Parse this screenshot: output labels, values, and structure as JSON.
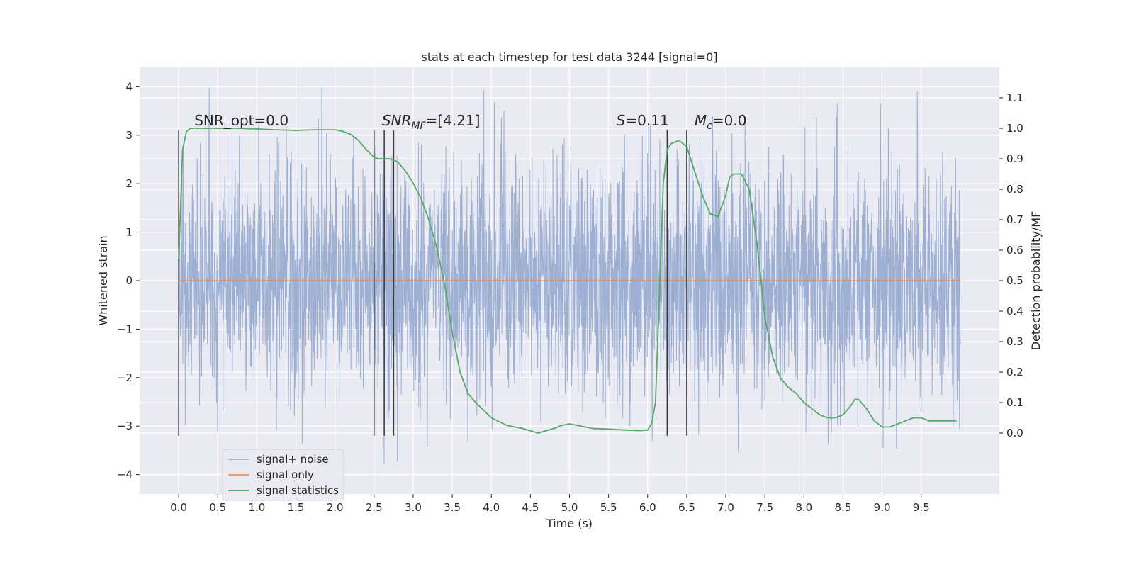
{
  "chart_data": {
    "type": "line",
    "title": "stats at each timestep for test data 3244 [signal=0]",
    "xlabel": "Time (s)",
    "ylabel": "Whitened strain",
    "y2label": "Detection probability/MF",
    "xlim": [
      -0.5,
      10.5
    ],
    "ylim": [
      -4.4,
      4.4
    ],
    "y2lim": [
      -0.2,
      1.2
    ],
    "x_ticks": [
      0.0,
      0.5,
      1.0,
      1.5,
      2.0,
      2.5,
      3.0,
      3.5,
      4.0,
      4.5,
      5.0,
      5.5,
      6.0,
      6.5,
      7.0,
      7.5,
      8.0,
      8.5,
      9.0,
      9.5
    ],
    "x_tick_labels": [
      "0.0",
      "0.5",
      "1.0",
      "1.5",
      "2.0",
      "2.5",
      "3.0",
      "3.5",
      "4.0",
      "4.5",
      "5.0",
      "5.5",
      "6.0",
      "6.5",
      "7.0",
      "7.5",
      "8.0",
      "8.5",
      "9.0",
      "9.5"
    ],
    "y_ticks": [
      4,
      3,
      2,
      1,
      0,
      -1,
      -2,
      -3,
      -4
    ],
    "y_tick_labels": [
      "4",
      "3",
      "2",
      "1",
      "0",
      "−1",
      "−2",
      "−3",
      "−4"
    ],
    "y2_ticks": [
      1.1,
      1.0,
      0.9,
      0.8,
      0.7,
      0.6,
      0.5,
      0.4,
      0.3,
      0.2,
      0.1,
      0.0
    ],
    "y2_tick_labels": [
      "1.1",
      "1.0",
      "0.9",
      "0.8",
      "0.7",
      "0.6",
      "0.5",
      "0.4",
      "0.3",
      "0.2",
      "0.1",
      "0.0"
    ],
    "grid": true,
    "legend_position": "lower-left",
    "colors": {
      "background": "#eaeaf2",
      "grid": "#ffffff",
      "noise": "#8fa4cc",
      "signal_only": "#dd8452",
      "statistics": "#55a868",
      "vlines": "#3a3a3a"
    },
    "vlines": [
      0.0,
      2.5,
      2.63,
      2.75,
      6.25,
      6.5
    ],
    "annotations": [
      {
        "prefix": "SNR_opt=0.0",
        "italic": "",
        "sub": "",
        "suffix": "",
        "x": 0.2
      },
      {
        "prefix": "",
        "italic": "SNR",
        "sub": "MF",
        "suffix": "=[4.21]",
        "x": 2.6
      },
      {
        "prefix": "",
        "italic": "S",
        "sub": "",
        "suffix": "=0.11",
        "x": 5.6
      },
      {
        "prefix": "",
        "italic": "M",
        "sub": "c",
        "suffix": "=0.0",
        "x": 6.6
      }
    ],
    "annotation_y": 3.2,
    "series": [
      {
        "name": "signal+ noise",
        "axis": "left",
        "x_range": [
          0.0,
          10.0
        ],
        "typical_amplitude": 1.2,
        "min": -4.05,
        "max": 3.98
      },
      {
        "name": "signal only",
        "axis": "left",
        "x": [
          0.0,
          10.0
        ],
        "y": [
          0.0,
          0.0
        ]
      },
      {
        "name": "signal statistics",
        "axis": "right",
        "x": [
          0.0,
          0.05,
          0.1,
          0.15,
          0.2,
          0.3,
          0.5,
          0.75,
          1.0,
          1.25,
          1.5,
          1.75,
          2.0,
          2.1,
          2.2,
          2.3,
          2.4,
          2.5,
          2.55,
          2.6,
          2.7,
          2.8,
          2.9,
          3.0,
          3.1,
          3.2,
          3.3,
          3.4,
          3.5,
          3.6,
          3.7,
          3.8,
          4.0,
          4.2,
          4.4,
          4.6,
          4.8,
          4.9,
          5.0,
          5.1,
          5.3,
          5.5,
          5.7,
          5.9,
          6.0,
          6.05,
          6.1,
          6.15,
          6.2,
          6.25,
          6.3,
          6.4,
          6.5,
          6.6,
          6.7,
          6.8,
          6.9,
          7.0,
          7.05,
          7.1,
          7.15,
          7.2,
          7.3,
          7.4,
          7.5,
          7.6,
          7.7,
          7.8,
          7.9,
          8.0,
          8.1,
          8.2,
          8.3,
          8.4,
          8.5,
          8.6,
          8.65,
          8.7,
          8.8,
          8.9,
          9.0,
          9.1,
          9.2,
          9.3,
          9.4,
          9.5,
          9.6,
          9.7,
          9.8,
          9.9,
          9.95
        ],
        "y": [
          0.57,
          0.93,
          0.99,
          1.0,
          1.0,
          1.0,
          1.0,
          1.0,
          0.998,
          0.995,
          0.993,
          0.995,
          0.995,
          0.99,
          0.98,
          0.96,
          0.93,
          0.905,
          0.9,
          0.9,
          0.9,
          0.89,
          0.86,
          0.82,
          0.77,
          0.7,
          0.61,
          0.49,
          0.33,
          0.2,
          0.13,
          0.1,
          0.05,
          0.025,
          0.015,
          0.0,
          0.015,
          0.025,
          0.03,
          0.025,
          0.015,
          0.013,
          0.01,
          0.008,
          0.01,
          0.03,
          0.1,
          0.45,
          0.82,
          0.93,
          0.95,
          0.96,
          0.94,
          0.86,
          0.78,
          0.72,
          0.71,
          0.78,
          0.84,
          0.85,
          0.85,
          0.85,
          0.8,
          0.62,
          0.38,
          0.25,
          0.18,
          0.15,
          0.13,
          0.1,
          0.08,
          0.06,
          0.05,
          0.05,
          0.06,
          0.09,
          0.11,
          0.11,
          0.08,
          0.04,
          0.02,
          0.02,
          0.03,
          0.04,
          0.05,
          0.05,
          0.04,
          0.04,
          0.04,
          0.04,
          0.04
        ]
      }
    ]
  }
}
